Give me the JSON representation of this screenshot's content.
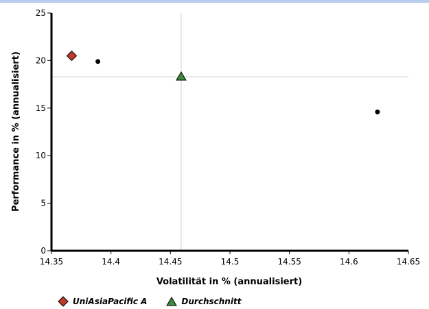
{
  "colors": {
    "top_rule": "#b9cdf0",
    "axis": "#000000",
    "crosshair": "#d0d0d0",
    "fund": "#c0392b",
    "average": "#3d8a3d",
    "peer": "#000000"
  },
  "legend": {
    "fund_label": "UniAsiaPacific A",
    "average_label": "Durchschnitt"
  },
  "chart_data": {
    "type": "scatter",
    "xlabel": "Volatilität in % (annualisiert)",
    "ylabel": "Performance in % (annualisiert)",
    "xlim": [
      14.35,
      14.65
    ],
    "ylim": [
      0,
      25
    ],
    "x_ticks": [
      14.35,
      14.4,
      14.45,
      14.5,
      14.55,
      14.6,
      14.65
    ],
    "x_tick_labels": [
      "14.35",
      "14.4",
      "14.45",
      "14.5",
      "14.55",
      "14.6",
      "14.65"
    ],
    "y_ticks": [
      0,
      5,
      10,
      15,
      20,
      25
    ],
    "y_tick_labels": [
      "0",
      "5",
      "10",
      "15",
      "20",
      "25"
    ],
    "grid": false,
    "legend_position": "bottom-left",
    "series": [
      {
        "name": "UniAsiaPacific A",
        "marker": "diamond",
        "points": [
          {
            "x": 14.367,
            "y": 20.5
          }
        ]
      },
      {
        "name": "Durchschnitt",
        "marker": "triangle",
        "points": [
          {
            "x": 14.459,
            "y": 18.3
          }
        ]
      },
      {
        "marker": "dot",
        "points": [
          {
            "x": 14.389,
            "y": 19.9
          },
          {
            "x": 14.624,
            "y": 14.6
          }
        ]
      }
    ],
    "reference_lines": {
      "x": 14.459,
      "y": 18.3
    }
  }
}
